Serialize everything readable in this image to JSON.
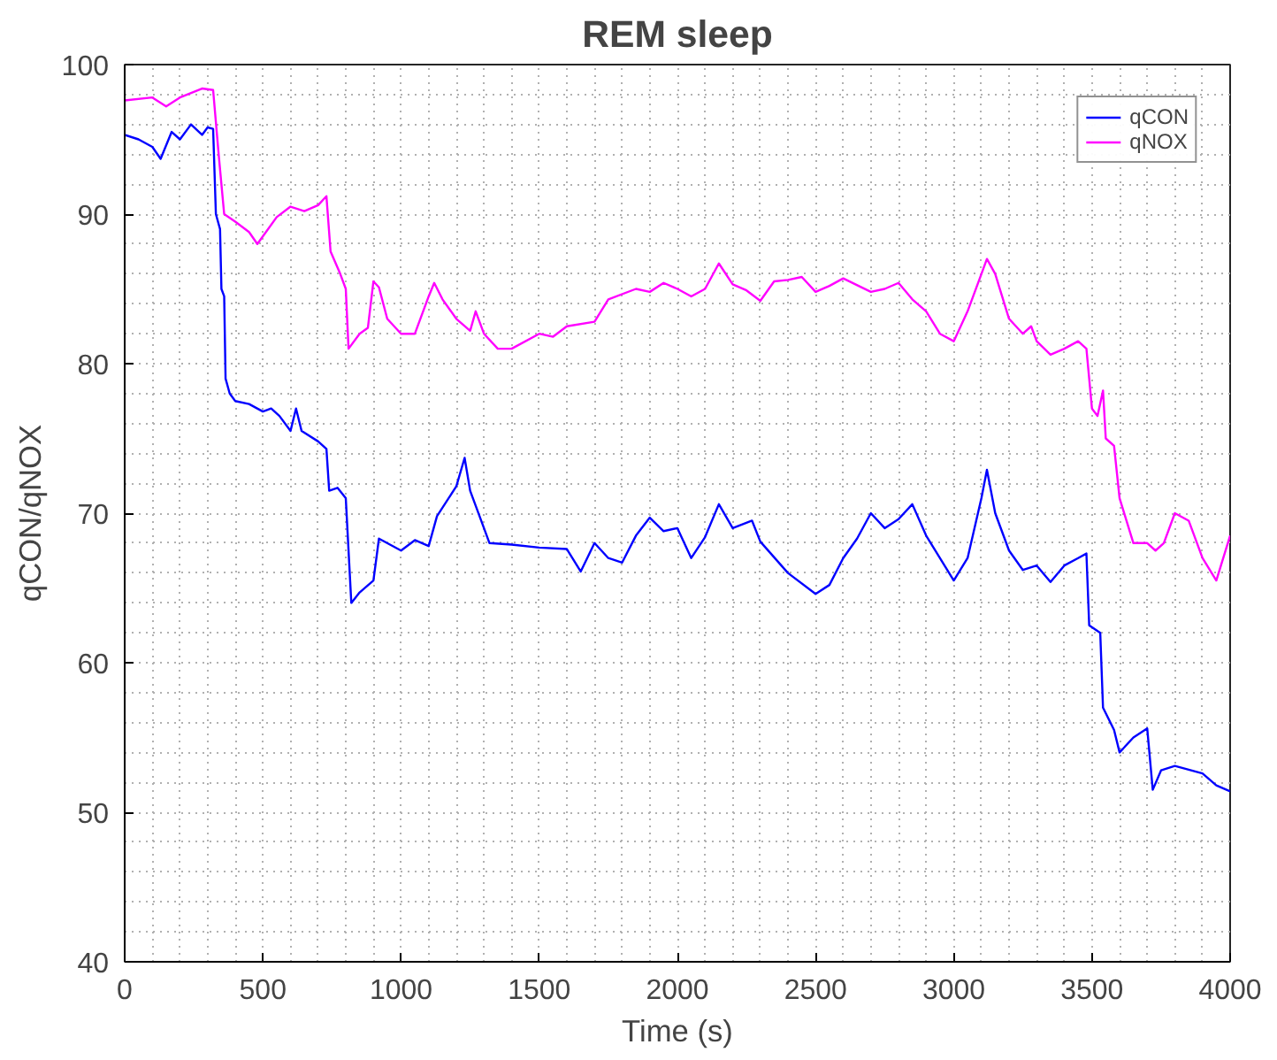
{
  "chart_data": {
    "type": "line",
    "title": "REM sleep",
    "xlabel": "Time (s)",
    "ylabel": "qCON/qNOX",
    "xlim": [
      0,
      4000
    ],
    "ylim": [
      40,
      100
    ],
    "xticks": [
      0,
      500,
      1000,
      1500,
      2000,
      2500,
      3000,
      3500,
      4000
    ],
    "yticks": [
      40,
      50,
      60,
      70,
      80,
      90,
      100
    ],
    "grid": true,
    "legend": "top right",
    "line_style": "solid",
    "marker": "none",
    "series": [
      {
        "name": "qCON",
        "color": "#0000ff",
        "x": [
          0,
          50,
          100,
          130,
          170,
          200,
          240,
          280,
          300,
          320,
          330,
          345,
          350,
          360,
          365,
          380,
          400,
          450,
          500,
          530,
          560,
          600,
          620,
          640,
          700,
          730,
          740,
          770,
          800,
          820,
          850,
          900,
          920,
          1000,
          1050,
          1100,
          1130,
          1200,
          1230,
          1250,
          1300,
          1320,
          1400,
          1500,
          1600,
          1650,
          1700,
          1750,
          1800,
          1850,
          1900,
          1950,
          2000,
          2050,
          2100,
          2150,
          2200,
          2270,
          2300,
          2400,
          2500,
          2550,
          2600,
          2650,
          2700,
          2750,
          2800,
          2850,
          2900,
          3000,
          3050,
          3100,
          3120,
          3150,
          3200,
          3250,
          3300,
          3350,
          3400,
          3450,
          3480,
          3490,
          3530,
          3540,
          3580,
          3600,
          3650,
          3700,
          3720,
          3750,
          3800,
          3900,
          3950,
          4000
        ],
        "values": [
          95.3,
          95,
          94.5,
          93.7,
          95.5,
          95,
          96,
          95.3,
          95.8,
          95.7,
          90,
          89,
          85,
          84.5,
          79,
          78,
          77.5,
          77.3,
          76.8,
          77,
          76.5,
          75.5,
          77,
          75.5,
          74.8,
          74.3,
          71.5,
          71.7,
          71,
          64,
          64.7,
          65.5,
          68.3,
          67.5,
          68.2,
          67.8,
          69.8,
          71.8,
          73.7,
          71.5,
          69,
          68,
          67.9,
          67.7,
          67.6,
          66.1,
          68,
          67,
          66.7,
          68.5,
          69.7,
          68.8,
          69,
          67,
          68.4,
          70.6,
          69,
          69.5,
          68.1,
          66,
          64.6,
          65.2,
          67,
          68.3,
          70,
          69,
          69.6,
          70.6,
          68.5,
          65.5,
          67,
          71,
          72.9,
          70,
          67.5,
          66.2,
          66.5,
          65.4,
          66.5,
          67,
          67.3,
          62.5,
          62,
          57,
          55.5,
          54,
          55,
          55.6,
          51.5,
          52.8,
          53.1,
          52.6,
          51.8,
          51.4
        ]
      },
      {
        "name": "qNOX",
        "color": "#ff00ff",
        "x": [
          0,
          100,
          150,
          200,
          280,
          320,
          340,
          360,
          400,
          450,
          480,
          550,
          600,
          650,
          700,
          730,
          745,
          780,
          800,
          810,
          850,
          880,
          900,
          920,
          950,
          1000,
          1050,
          1100,
          1120,
          1150,
          1200,
          1250,
          1270,
          1300,
          1350,
          1400,
          1500,
          1550,
          1600,
          1700,
          1750,
          1850,
          1900,
          1950,
          2000,
          2050,
          2100,
          2150,
          2200,
          2250,
          2300,
          2350,
          2400,
          2450,
          2500,
          2550,
          2600,
          2700,
          2750,
          2800,
          2850,
          2900,
          2950,
          3000,
          3050,
          3100,
          3120,
          3150,
          3200,
          3250,
          3280,
          3300,
          3350,
          3400,
          3450,
          3480,
          3500,
          3520,
          3540,
          3550,
          3580,
          3600,
          3650,
          3700,
          3730,
          3760,
          3800,
          3850,
          3900,
          3950,
          4000
        ],
        "values": [
          97.6,
          97.8,
          97.2,
          97.8,
          98.4,
          98.3,
          94,
          90,
          89.5,
          88.8,
          88,
          89.8,
          90.5,
          90.2,
          90.6,
          91.2,
          87.5,
          86,
          85,
          81,
          82,
          82.4,
          85.5,
          85.1,
          83,
          82,
          82,
          84.5,
          85.4,
          84.3,
          83,
          82.2,
          83.5,
          82,
          81,
          81,
          82,
          81.8,
          82.5,
          82.8,
          84.3,
          85,
          84.8,
          85.4,
          85,
          84.5,
          85,
          86.7,
          85.3,
          84.9,
          84.2,
          85.5,
          85.6,
          85.8,
          84.8,
          85.2,
          85.7,
          84.8,
          85,
          85.4,
          84.3,
          83.5,
          82,
          81.5,
          83.5,
          86,
          87,
          86,
          83,
          82,
          82.5,
          81.5,
          80.6,
          81,
          81.5,
          81,
          77,
          76.5,
          78.2,
          75,
          74.5,
          71,
          68,
          68,
          67.5,
          68,
          70,
          69.5,
          67,
          65.5,
          68.5
        ]
      }
    ]
  }
}
